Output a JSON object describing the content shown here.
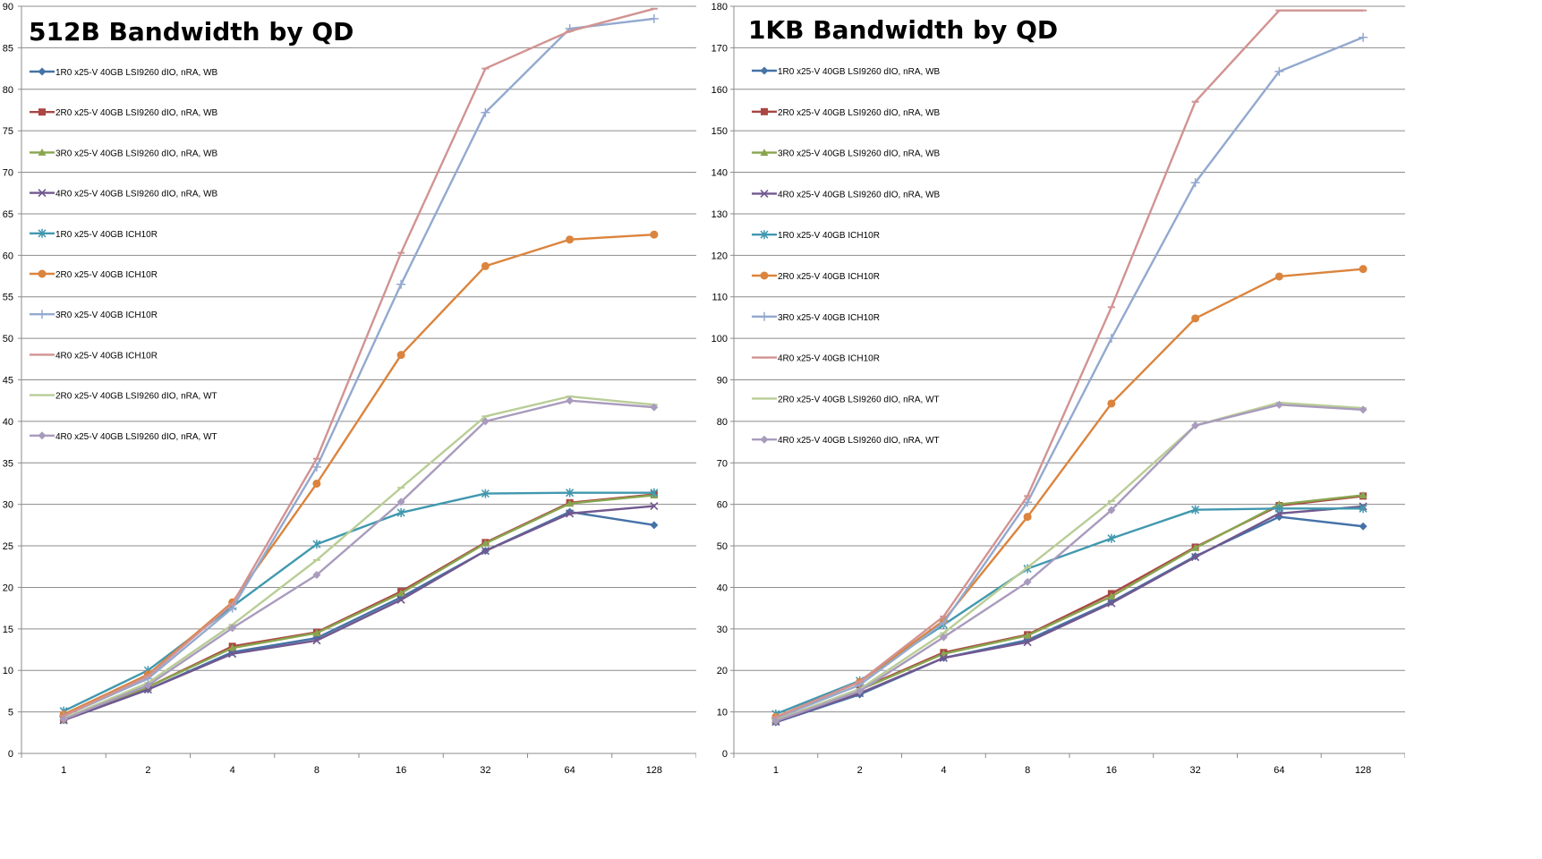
{
  "chart_data": [
    {
      "type": "line",
      "title": "512B Bandwidth by QD",
      "xlabel": "",
      "ylabel": "",
      "categories": [
        "1",
        "2",
        "4",
        "8",
        "16",
        "32",
        "64",
        "128"
      ],
      "ylim": [
        0,
        90
      ],
      "yticks": [
        0,
        5,
        10,
        15,
        20,
        25,
        30,
        35,
        40,
        45,
        50,
        55,
        60,
        65,
        70,
        75,
        80,
        85,
        90
      ],
      "grid": "horizontal",
      "legend_placement": "top-left",
      "series": [
        {
          "name": "1R0 x25-V 40GB LSI9260 dIO, nRA, WB",
          "color": "#4572a7",
          "marker": "diamond",
          "values": [
            4.0,
            7.7,
            12.2,
            13.9,
            18.8,
            24.4,
            29.1,
            27.5
          ]
        },
        {
          "name": "2R0 x25-V 40GB LSI9260 dIO, nRA, WB",
          "color": "#aa4643",
          "marker": "square",
          "values": [
            4.1,
            8.0,
            12.9,
            14.6,
            19.5,
            25.4,
            30.2,
            31.2
          ]
        },
        {
          "name": "3R0 x25-V 40GB LSI9260 dIO, nRA, WB",
          "color": "#89a54e",
          "marker": "triangle",
          "values": [
            4.0,
            8.0,
            12.7,
            14.5,
            19.3,
            25.3,
            30.1,
            31.1
          ]
        },
        {
          "name": "4R0 x25-V 40GB LSI9260 dIO, nRA, WB",
          "color": "#71588f",
          "marker": "x",
          "values": [
            4.0,
            7.7,
            12.0,
            13.6,
            18.5,
            24.4,
            28.9,
            29.8
          ]
        },
        {
          "name": "1R0 x25-V 40GB ICH10R",
          "color": "#4198af",
          "marker": "star",
          "values": [
            5.1,
            10.0,
            17.7,
            25.2,
            29.0,
            31.3,
            31.4,
            31.4
          ]
        },
        {
          "name": "2R0 x25-V 40GB ICH10R",
          "color": "#db843d",
          "marker": "circle",
          "values": [
            4.7,
            9.5,
            18.2,
            32.5,
            48.0,
            58.7,
            61.9,
            62.5
          ]
        },
        {
          "name": "3R0 x25-V 40GB ICH10R",
          "color": "#93a9cf",
          "marker": "plus",
          "values": [
            4.5,
            9.0,
            17.5,
            34.5,
            56.5,
            77.2,
            87.3,
            88.5
          ]
        },
        {
          "name": "4R0 x25-V 40GB ICH10R",
          "color": "#d19392",
          "marker": "dash",
          "values": [
            4.5,
            9.3,
            18.0,
            35.5,
            60.3,
            82.5,
            87.0,
            89.7
          ]
        },
        {
          "name": "2R0 x25-V 40GB LSI9260 dIO, nRA, WT",
          "color": "#b9cd96",
          "marker": "dash",
          "values": [
            4.2,
            8.5,
            15.5,
            23.3,
            32.0,
            40.6,
            43.0,
            42.0
          ]
        },
        {
          "name": "4R0 x25-V 40GB LSI9260 dIO, nRA, WT",
          "color": "#a99bbd",
          "marker": "diamond",
          "values": [
            4.1,
            8.2,
            15.1,
            21.5,
            30.3,
            40.0,
            42.5,
            41.7
          ]
        }
      ]
    },
    {
      "type": "line",
      "title": "1KB Bandwidth by QD",
      "xlabel": "",
      "ylabel": "",
      "categories": [
        "1",
        "2",
        "4",
        "8",
        "16",
        "32",
        "64",
        "128"
      ],
      "ylim": [
        0,
        180
      ],
      "yticks": [
        0,
        10,
        20,
        30,
        40,
        50,
        60,
        70,
        80,
        90,
        100,
        110,
        120,
        130,
        140,
        150,
        160,
        170,
        180
      ],
      "grid": "horizontal",
      "legend_placement": "top-left",
      "series": [
        {
          "name": "1R0 x25-V 40GB LSI9260 dIO, nRA, WB",
          "color": "#4572a7",
          "marker": "diamond",
          "values": [
            7.5,
            14.2,
            23.0,
            27.3,
            36.5,
            47.5,
            57.0,
            54.7
          ]
        },
        {
          "name": "2R0 x25-V 40GB LSI9260 dIO, nRA, WB",
          "color": "#aa4643",
          "marker": "square",
          "values": [
            8.0,
            15.5,
            24.3,
            28.6,
            38.5,
            49.7,
            59.7,
            62.0
          ]
        },
        {
          "name": "3R0 x25-V 40GB LSI9260 dIO, nRA, WB",
          "color": "#89a54e",
          "marker": "triangle",
          "values": [
            7.8,
            15.3,
            24.0,
            28.4,
            37.8,
            49.5,
            60.0,
            62.2
          ]
        },
        {
          "name": "4R0 x25-V 40GB LSI9260 dIO, nRA, WB",
          "color": "#71588f",
          "marker": "x",
          "values": [
            7.6,
            14.5,
            23.0,
            26.8,
            36.2,
            47.3,
            57.8,
            59.5
          ]
        },
        {
          "name": "1R0 x25-V 40GB ICH10R",
          "color": "#4198af",
          "marker": "star",
          "values": [
            9.5,
            17.5,
            31.0,
            44.5,
            51.8,
            58.7,
            59.0,
            59.0
          ]
        },
        {
          "name": "2R0 x25-V 40GB ICH10R",
          "color": "#db843d",
          "marker": "circle",
          "values": [
            8.8,
            17.2,
            32.0,
            57.0,
            84.3,
            104.8,
            114.9,
            116.7
          ]
        },
        {
          "name": "3R0 x25-V 40GB ICH10R",
          "color": "#93a9cf",
          "marker": "plus",
          "values": [
            8.5,
            16.5,
            31.5,
            60.5,
            100.0,
            137.5,
            164.3,
            172.5
          ]
        },
        {
          "name": "4R0 x25-V 40GB ICH10R",
          "color": "#d19392",
          "marker": "dash",
          "values": [
            8.7,
            17.3,
            33.0,
            62.0,
            107.5,
            157.0,
            179.0,
            179.0
          ]
        },
        {
          "name": "2R0 x25-V 40GB LSI9260 dIO, nRA, WT",
          "color": "#b9cd96",
          "marker": "dash",
          "values": [
            8.0,
            15.5,
            29.0,
            44.8,
            60.8,
            79.0,
            84.5,
            83.2
          ]
        },
        {
          "name": "4R0 x25-V 40GB LSI9260 dIO, nRA, WT",
          "color": "#a99bbd",
          "marker": "diamond",
          "values": [
            7.8,
            15.0,
            28.0,
            41.3,
            58.6,
            79.0,
            84.0,
            82.8
          ]
        }
      ]
    }
  ]
}
